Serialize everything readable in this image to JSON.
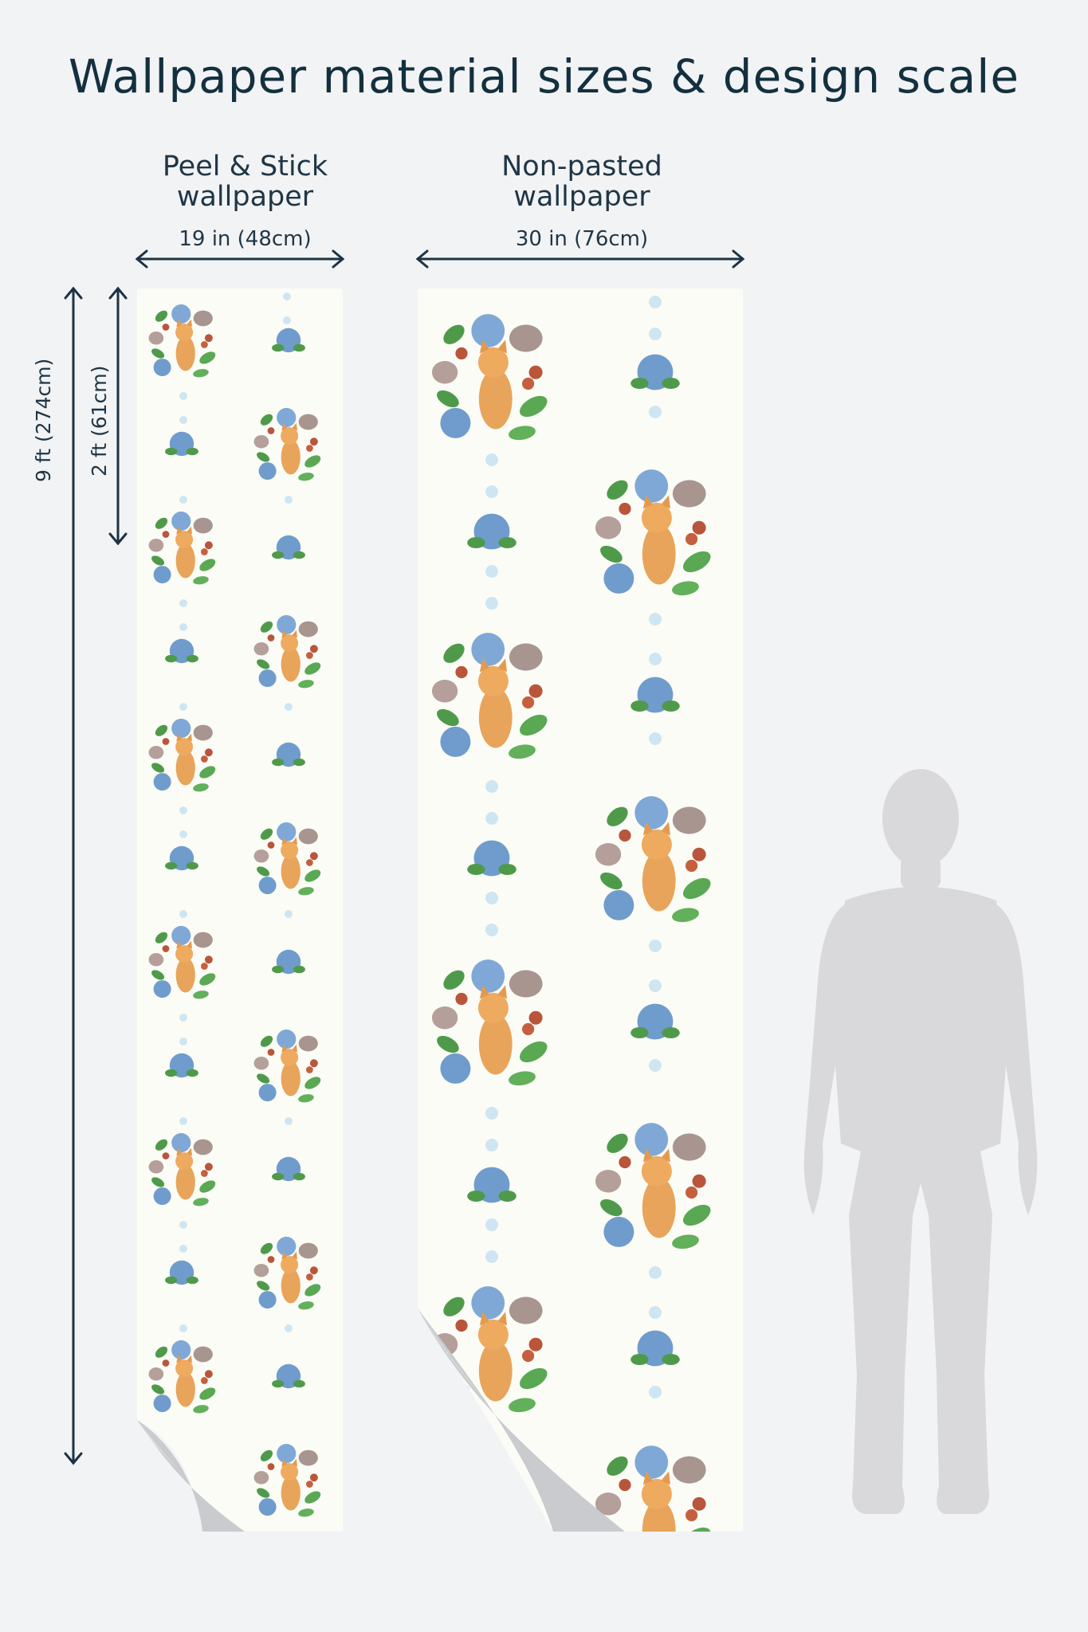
{
  "page": {
    "title": "Wallpaper material sizes & design scale"
  },
  "peel_stick": {
    "label_line1": "Peel & Stick",
    "label_line2": "wallpaper",
    "width_label": "19 in (48cm)"
  },
  "non_pasted": {
    "label_line1": "Non-pasted",
    "label_line2": "wallpaper",
    "width_label": "30 in (76cm)"
  },
  "height_labels": {
    "full": "9 ft (274cm)",
    "repeat": "2 ft (61cm)"
  },
  "colors": {
    "background": "#f2f3f5",
    "wallpaper": "#fbfcf6",
    "text": "#13303f",
    "silhouette": "#d9d9db",
    "dot": "#cfe6f2",
    "cat": "#e8a45a",
    "hydrangea": "#7fa8d6",
    "leaf": "#4f9a4a",
    "flower_red": "#b9553b",
    "tulip": "#a89590"
  },
  "icons": {
    "peel_curl": "page-curl-icon",
    "person": "human-silhouette-icon"
  }
}
